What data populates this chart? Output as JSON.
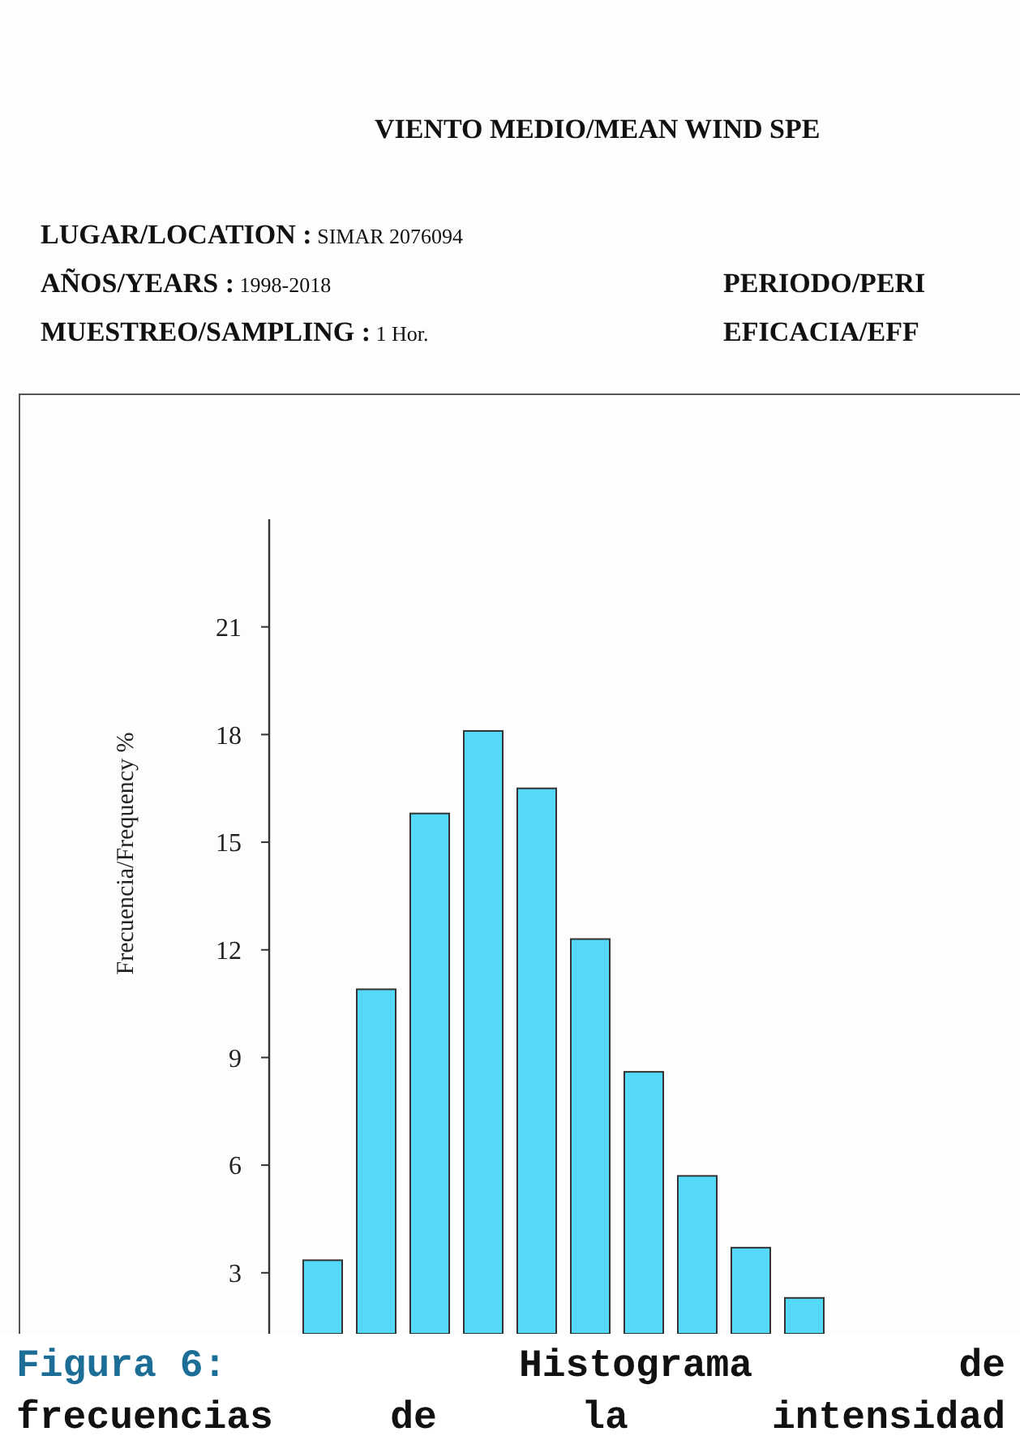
{
  "chart_data": {
    "type": "bar",
    "title": "VIENTO MEDIO/MEAN WIND SPE",
    "ylabel": "Frecuencia/Frequency %",
    "annotations": [
      "LUGAR/LOCATION : SIMAR 2076094",
      "AÑOS/YEARS : 1998-2018",
      "MUESTREO/SAMPLING : 1 Hor.",
      "PERIODO/PERI",
      "EFICACIA/EFF",
      "Figura 6: Histograma de frecuencias de la intensidad"
    ],
    "categories": [
      null,
      null,
      null,
      null,
      null,
      null,
      null,
      null,
      null,
      null
    ],
    "values": [
      3.35,
      10.9,
      15.8,
      18.1,
      16.5,
      12.3,
      8.6,
      5.7,
      3.7,
      2.3
    ],
    "color": "#55d9f8",
    "ylim": [
      1.3,
      24
    ],
    "yticks": [
      3,
      6,
      9,
      12,
      15,
      18,
      21
    ]
  }
}
